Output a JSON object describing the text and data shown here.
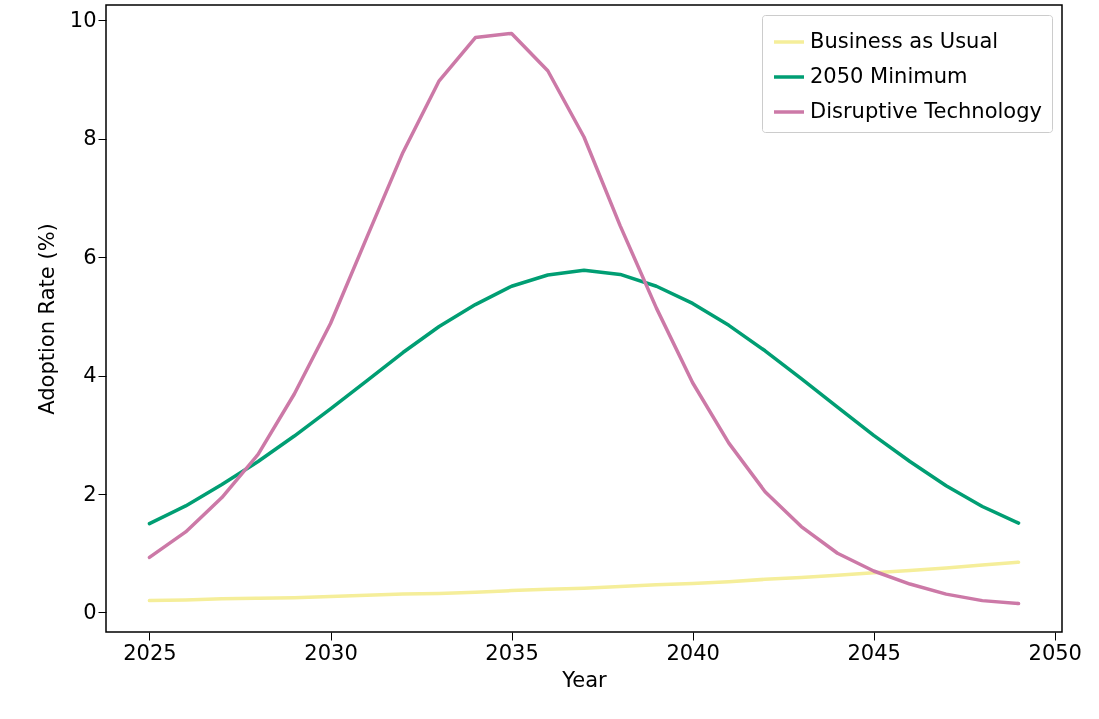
{
  "chart_data": {
    "type": "line",
    "xlabel": "Year",
    "ylabel": "Adoption Rate (%)",
    "x": [
      2025,
      2026,
      2027,
      2028,
      2029,
      2030,
      2031,
      2032,
      2033,
      2034,
      2035,
      2036,
      2037,
      2038,
      2039,
      2040,
      2041,
      2042,
      2043,
      2044,
      2045,
      2046,
      2047,
      2048,
      2049
    ],
    "series": [
      {
        "name": "Business as Usual",
        "color": "#f5ee9a",
        "values": [
          0.2,
          0.21,
          0.23,
          0.24,
          0.25,
          0.27,
          0.29,
          0.31,
          0.32,
          0.34,
          0.37,
          0.39,
          0.41,
          0.44,
          0.47,
          0.49,
          0.52,
          0.56,
          0.59,
          0.63,
          0.67,
          0.71,
          0.75,
          0.8,
          0.85
        ]
      },
      {
        "name": "2050 Minimum",
        "color": "#009e73",
        "values": [
          1.5,
          1.8,
          2.16,
          2.55,
          2.98,
          3.44,
          3.91,
          4.39,
          4.83,
          5.2,
          5.51,
          5.7,
          5.78,
          5.71,
          5.51,
          5.22,
          4.85,
          4.42,
          3.95,
          3.47,
          2.99,
          2.55,
          2.14,
          1.79,
          1.51
        ]
      },
      {
        "name": "Disruptive Technology",
        "color": "#cc79a7",
        "values": [
          0.93,
          1.36,
          1.94,
          2.67,
          3.69,
          4.88,
          6.33,
          7.77,
          8.98,
          9.71,
          9.78,
          9.15,
          8.03,
          6.53,
          5.14,
          3.88,
          2.86,
          2.04,
          1.45,
          1.0,
          0.7,
          0.48,
          0.31,
          0.2,
          0.15
        ]
      }
    ],
    "xlim": [
      2023.8,
      2050.2
    ],
    "xticks": [
      2025,
      2030,
      2035,
      2040,
      2045,
      2050
    ],
    "ylim": [
      -0.33,
      10.26
    ],
    "yticks": [
      0,
      2,
      4,
      6,
      8,
      10
    ],
    "legend": "top right",
    "grid": false,
    "line_style": "solid"
  }
}
